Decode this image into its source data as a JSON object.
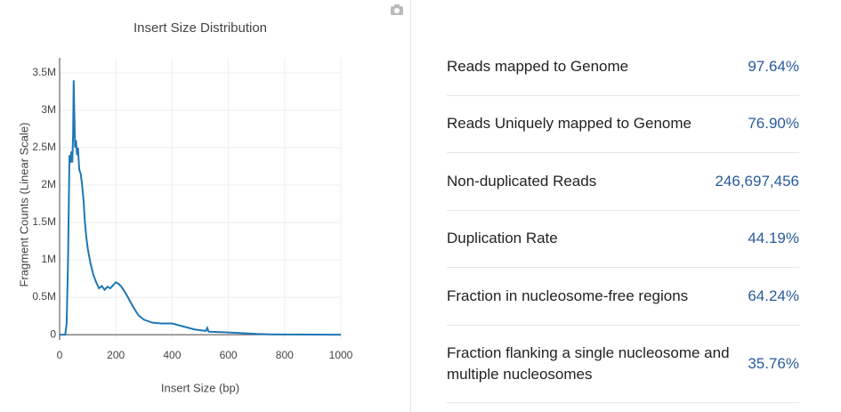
{
  "chart_data": {
    "type": "line",
    "title": "Insert Size Distribution",
    "x_label": "Insert Size (bp)",
    "y_label": "Fragment Counts (Linear Scale)",
    "color": "#1f77b4",
    "grid": true,
    "xlim": [
      0,
      1000
    ],
    "xticks": [
      0,
      200,
      400,
      600,
      800,
      1000
    ],
    "ylim": [
      -70000,
      3700000
    ],
    "yticks": [
      0,
      {
        "value": 500000,
        "label": "0.5M"
      },
      {
        "value": 1000000,
        "label": "1M"
      },
      {
        "value": 1500000,
        "label": "1.5M"
      },
      {
        "value": 2000000,
        "label": "2M"
      },
      {
        "value": 2500000,
        "label": "2.5M"
      },
      {
        "value": 3000000,
        "label": "3M"
      },
      {
        "value": 3500000,
        "label": "3.5M"
      }
    ],
    "x": [
      0,
      20,
      25,
      30,
      35,
      38,
      42,
      45,
      48,
      50,
      52,
      55,
      58,
      62,
      65,
      70,
      75,
      80,
      85,
      90,
      95,
      100,
      110,
      120,
      130,
      140,
      150,
      160,
      170,
      180,
      190,
      200,
      210,
      220,
      240,
      260,
      280,
      300,
      330,
      360,
      400,
      440,
      480,
      520,
      525,
      530,
      560,
      600,
      650,
      700,
      750,
      800,
      900,
      1000
    ],
    "values": [
      0,
      0,
      150000,
      1000000,
      2400000,
      2300000,
      2450000,
      2300000,
      2700000,
      3400000,
      3000000,
      2500000,
      2600000,
      2400000,
      2500000,
      2200000,
      2150000,
      2000000,
      1800000,
      1500000,
      1300000,
      1150000,
      950000,
      800000,
      700000,
      620000,
      650000,
      600000,
      640000,
      620000,
      660000,
      700000,
      680000,
      640000,
      520000,
      380000,
      260000,
      200000,
      160000,
      150000,
      150000,
      110000,
      70000,
      50000,
      90000,
      40000,
      35000,
      30000,
      20000,
      10000,
      5000,
      3000,
      1000,
      0
    ]
  },
  "stats": {
    "rows": [
      {
        "label": "Reads mapped to Genome",
        "value": "97.64%"
      },
      {
        "label": "Reads Uniquely mapped to Genome",
        "value": "76.90%"
      },
      {
        "label": "Non-duplicated Reads",
        "value": "246,697,456"
      },
      {
        "label": "Duplication Rate",
        "value": "44.19%"
      },
      {
        "label": "Fraction in nucleosome-free regions",
        "value": "64.24%"
      },
      {
        "label": "Fraction flanking a single nucleosome and multiple nucleosomes",
        "value": "35.76%"
      }
    ]
  }
}
